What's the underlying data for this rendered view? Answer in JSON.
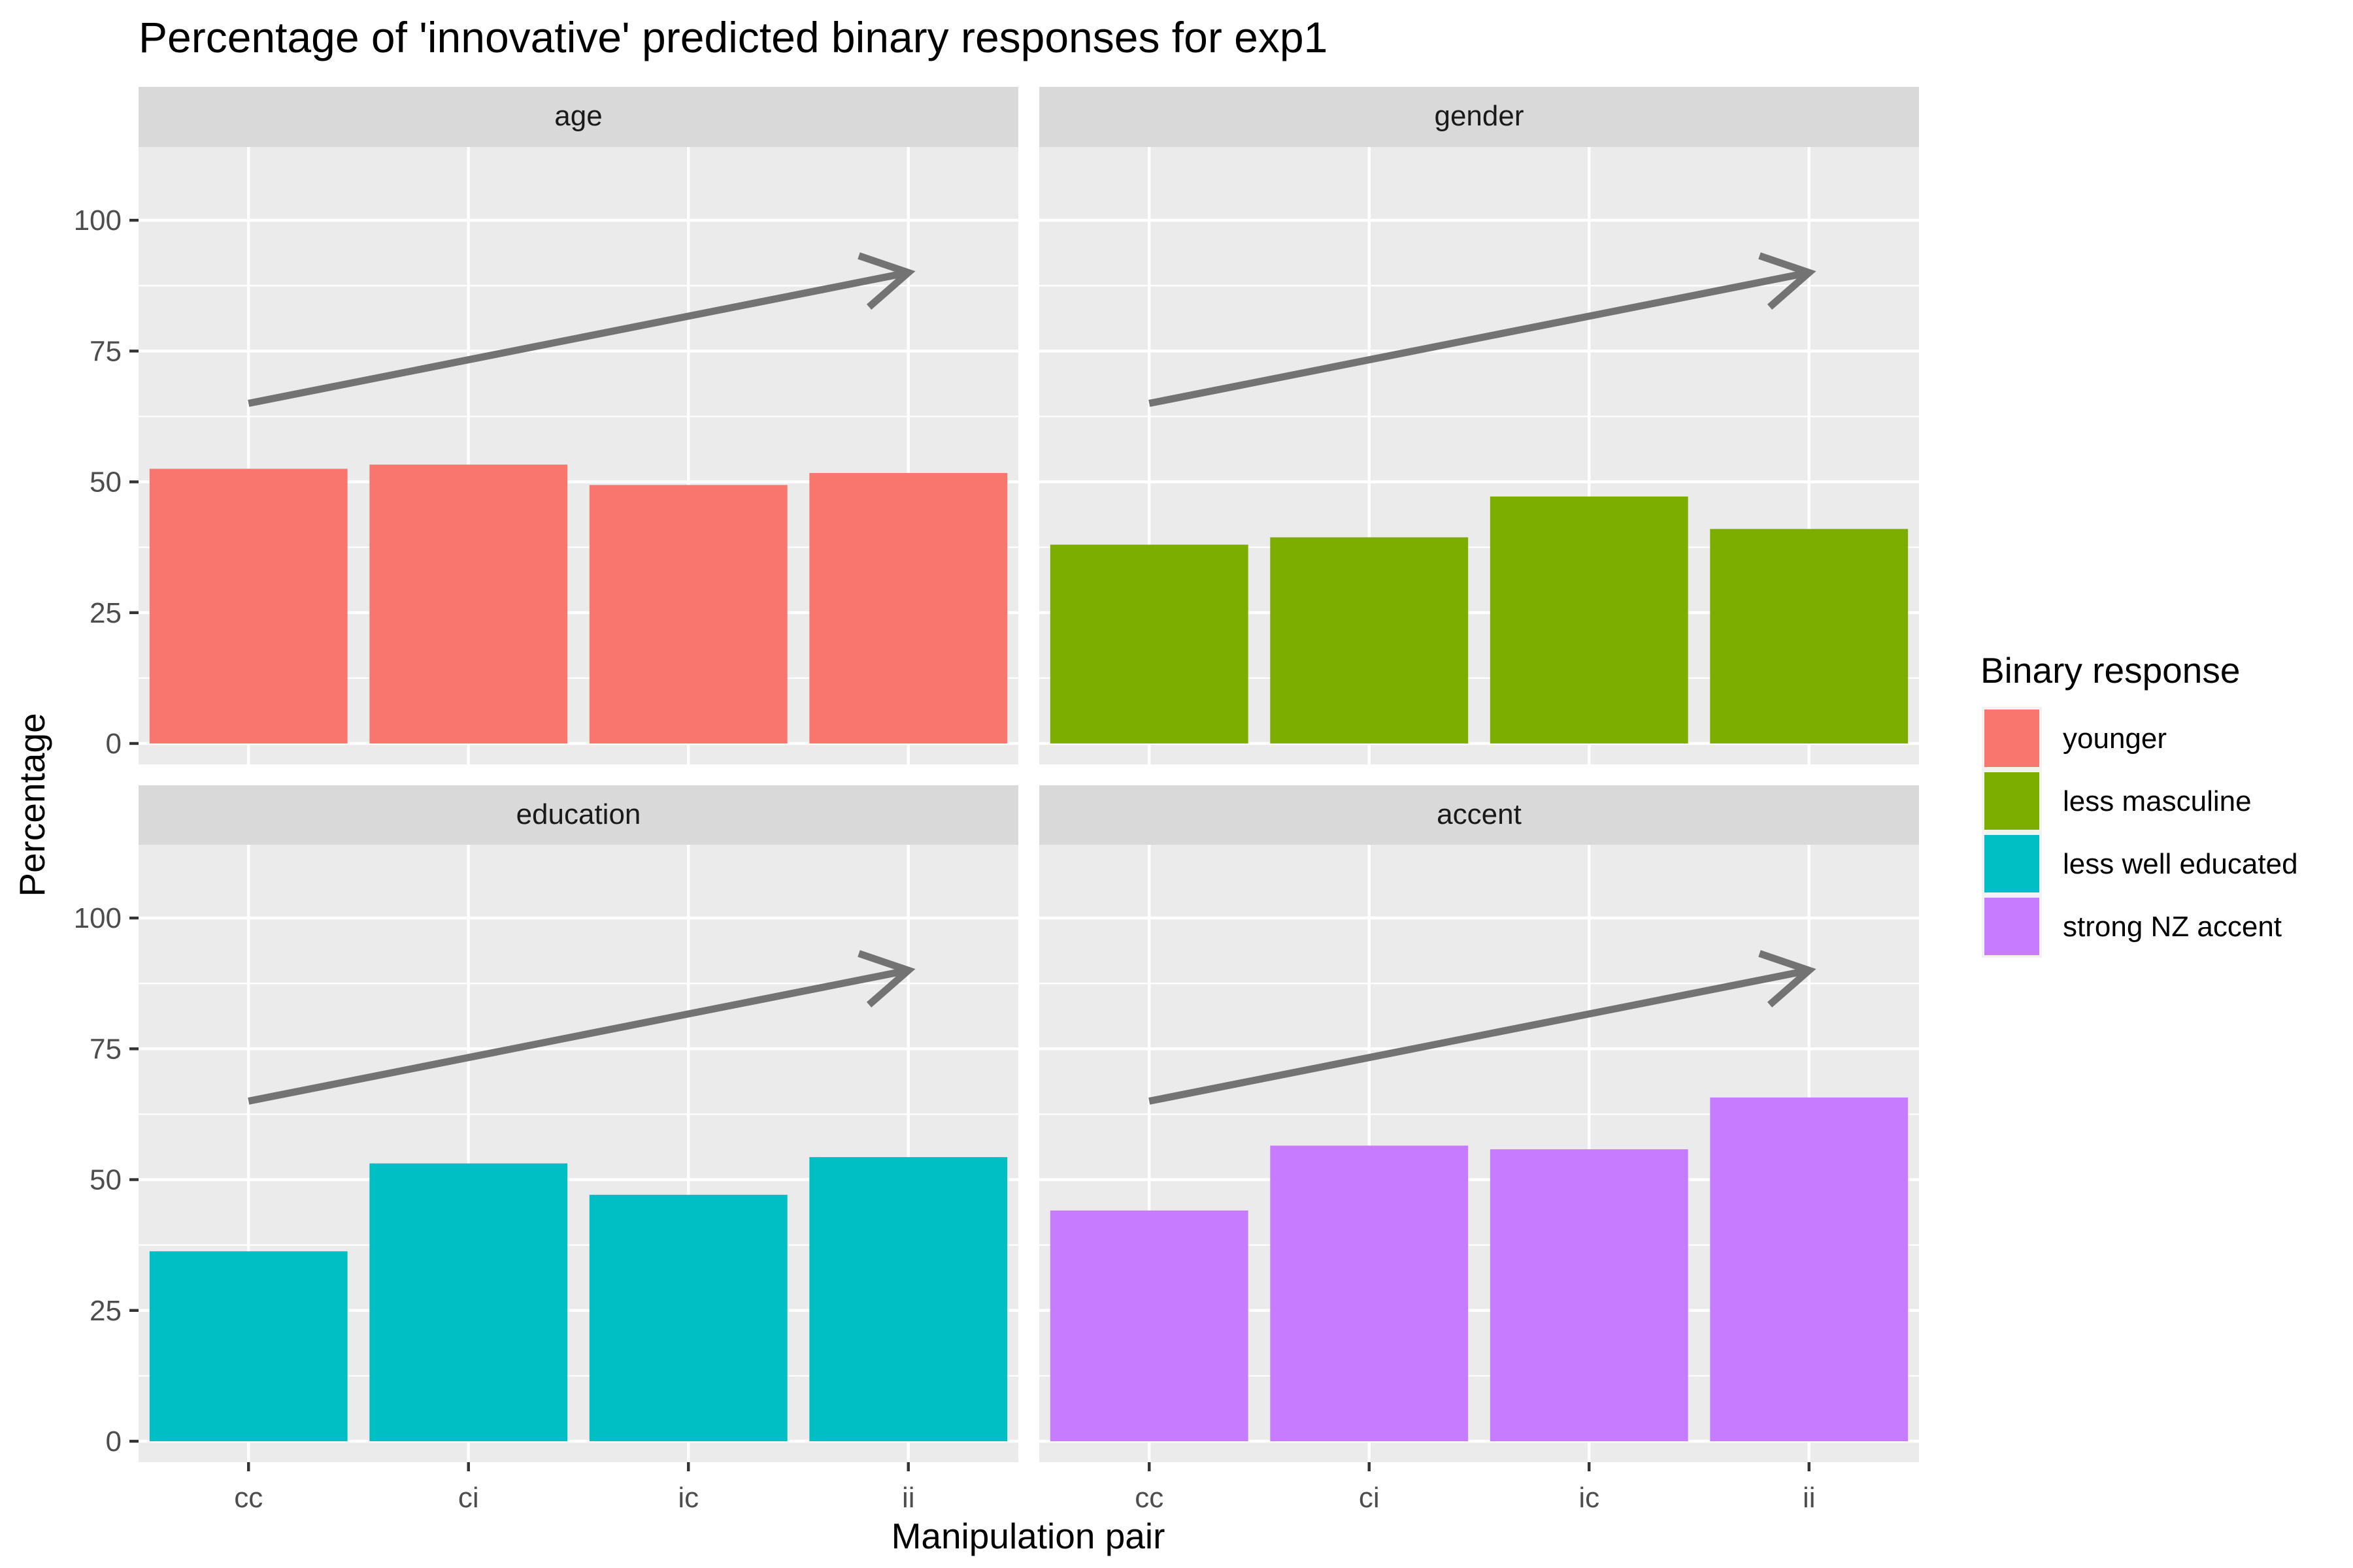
{
  "chart_data": {
    "type": "bar",
    "title": "Percentage of 'innovative' predicted binary responses for exp1",
    "xlabel": "Manipulation pair",
    "ylabel": "Percentage",
    "categories": [
      "cc",
      "ci",
      "ic",
      "ii"
    ],
    "ylim": [
      -4,
      114
    ],
    "yticks": [
      0,
      25,
      50,
      75,
      100
    ],
    "grid": true,
    "facet_layout": "2x2",
    "legend": {
      "title": "Binary response",
      "placement": "right",
      "entries": [
        "younger",
        "less masculine",
        "less well educated",
        "strong NZ accent"
      ]
    },
    "arrow": {
      "x_from": "cc",
      "y_from": 65,
      "x_to": "ii",
      "y_to": 90,
      "color": "#737373"
    },
    "panels": [
      {
        "strip": "age",
        "series": "younger",
        "color": "#F8766D",
        "values": [
          52.5,
          53.3,
          49.4,
          51.7
        ]
      },
      {
        "strip": "gender",
        "series": "less masculine",
        "color": "#7CAE00",
        "values": [
          38.0,
          39.4,
          47.2,
          41.0
        ]
      },
      {
        "strip": "education",
        "series": "less well educated",
        "color": "#00BFC4",
        "values": [
          36.3,
          53.1,
          47.1,
          54.3
        ]
      },
      {
        "strip": "accent",
        "series": "strong NZ accent",
        "color": "#C77CFF",
        "values": [
          44.1,
          56.5,
          55.8,
          65.7
        ]
      }
    ]
  }
}
